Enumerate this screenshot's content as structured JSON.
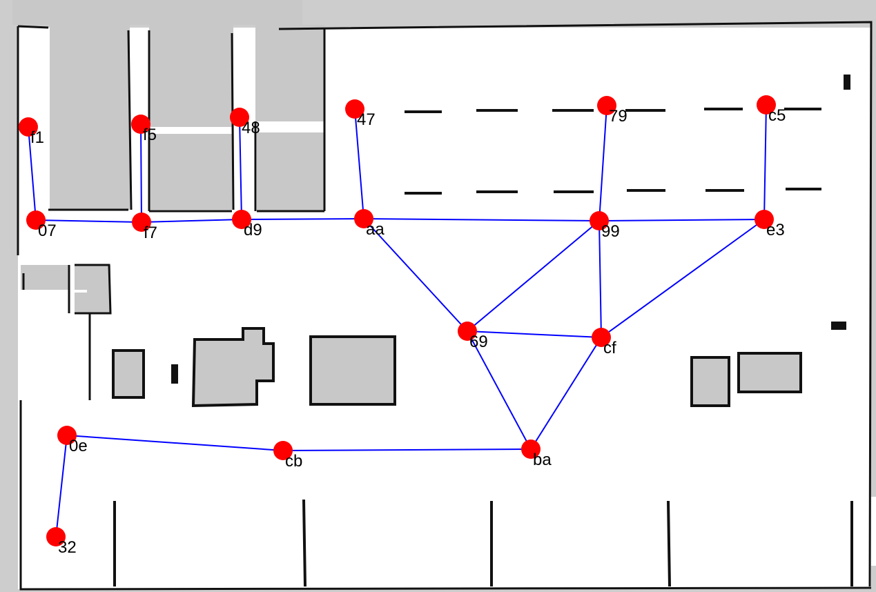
{
  "map": {
    "colors": {
      "unknown": "#cdcdcd",
      "free": "#ffffff",
      "wall": "#111111",
      "node": "#ff0000",
      "edge": "#0000ff",
      "label": "#000000"
    },
    "nodes": [
      {
        "id": "f1",
        "label": "f1"
      },
      {
        "id": "f5",
        "label": "f5"
      },
      {
        "id": "48",
        "label": "48"
      },
      {
        "id": "47",
        "label": "47"
      },
      {
        "id": "79",
        "label": "79"
      },
      {
        "id": "c5",
        "label": "c5"
      },
      {
        "id": "07",
        "label": "07"
      },
      {
        "id": "f7",
        "label": "f7"
      },
      {
        "id": "d9",
        "label": "d9"
      },
      {
        "id": "aa",
        "label": "aa"
      },
      {
        "id": "99",
        "label": "99"
      },
      {
        "id": "e3",
        "label": "e3"
      },
      {
        "id": "69",
        "label": "69"
      },
      {
        "id": "cf",
        "label": "cf"
      },
      {
        "id": "0e",
        "label": "0e"
      },
      {
        "id": "cb",
        "label": "cb"
      },
      {
        "id": "ba",
        "label": "ba"
      },
      {
        "id": "32",
        "label": "32"
      }
    ],
    "edges": [
      [
        "f1",
        "07"
      ],
      [
        "f5",
        "f7"
      ],
      [
        "48",
        "d9"
      ],
      [
        "47",
        "aa"
      ],
      [
        "79",
        "99"
      ],
      [
        "c5",
        "e3"
      ],
      [
        "07",
        "f7"
      ],
      [
        "f7",
        "d9"
      ],
      [
        "d9",
        "aa"
      ],
      [
        "aa",
        "99"
      ],
      [
        "99",
        "e3"
      ],
      [
        "aa",
        "69"
      ],
      [
        "99",
        "69"
      ],
      [
        "99",
        "cf"
      ],
      [
        "e3",
        "cf"
      ],
      [
        "69",
        "cf"
      ],
      [
        "69",
        "ba"
      ],
      [
        "cf",
        "ba"
      ],
      [
        "ba",
        "cb"
      ],
      [
        "cb",
        "0e"
      ],
      [
        "0e",
        "32"
      ]
    ]
  }
}
